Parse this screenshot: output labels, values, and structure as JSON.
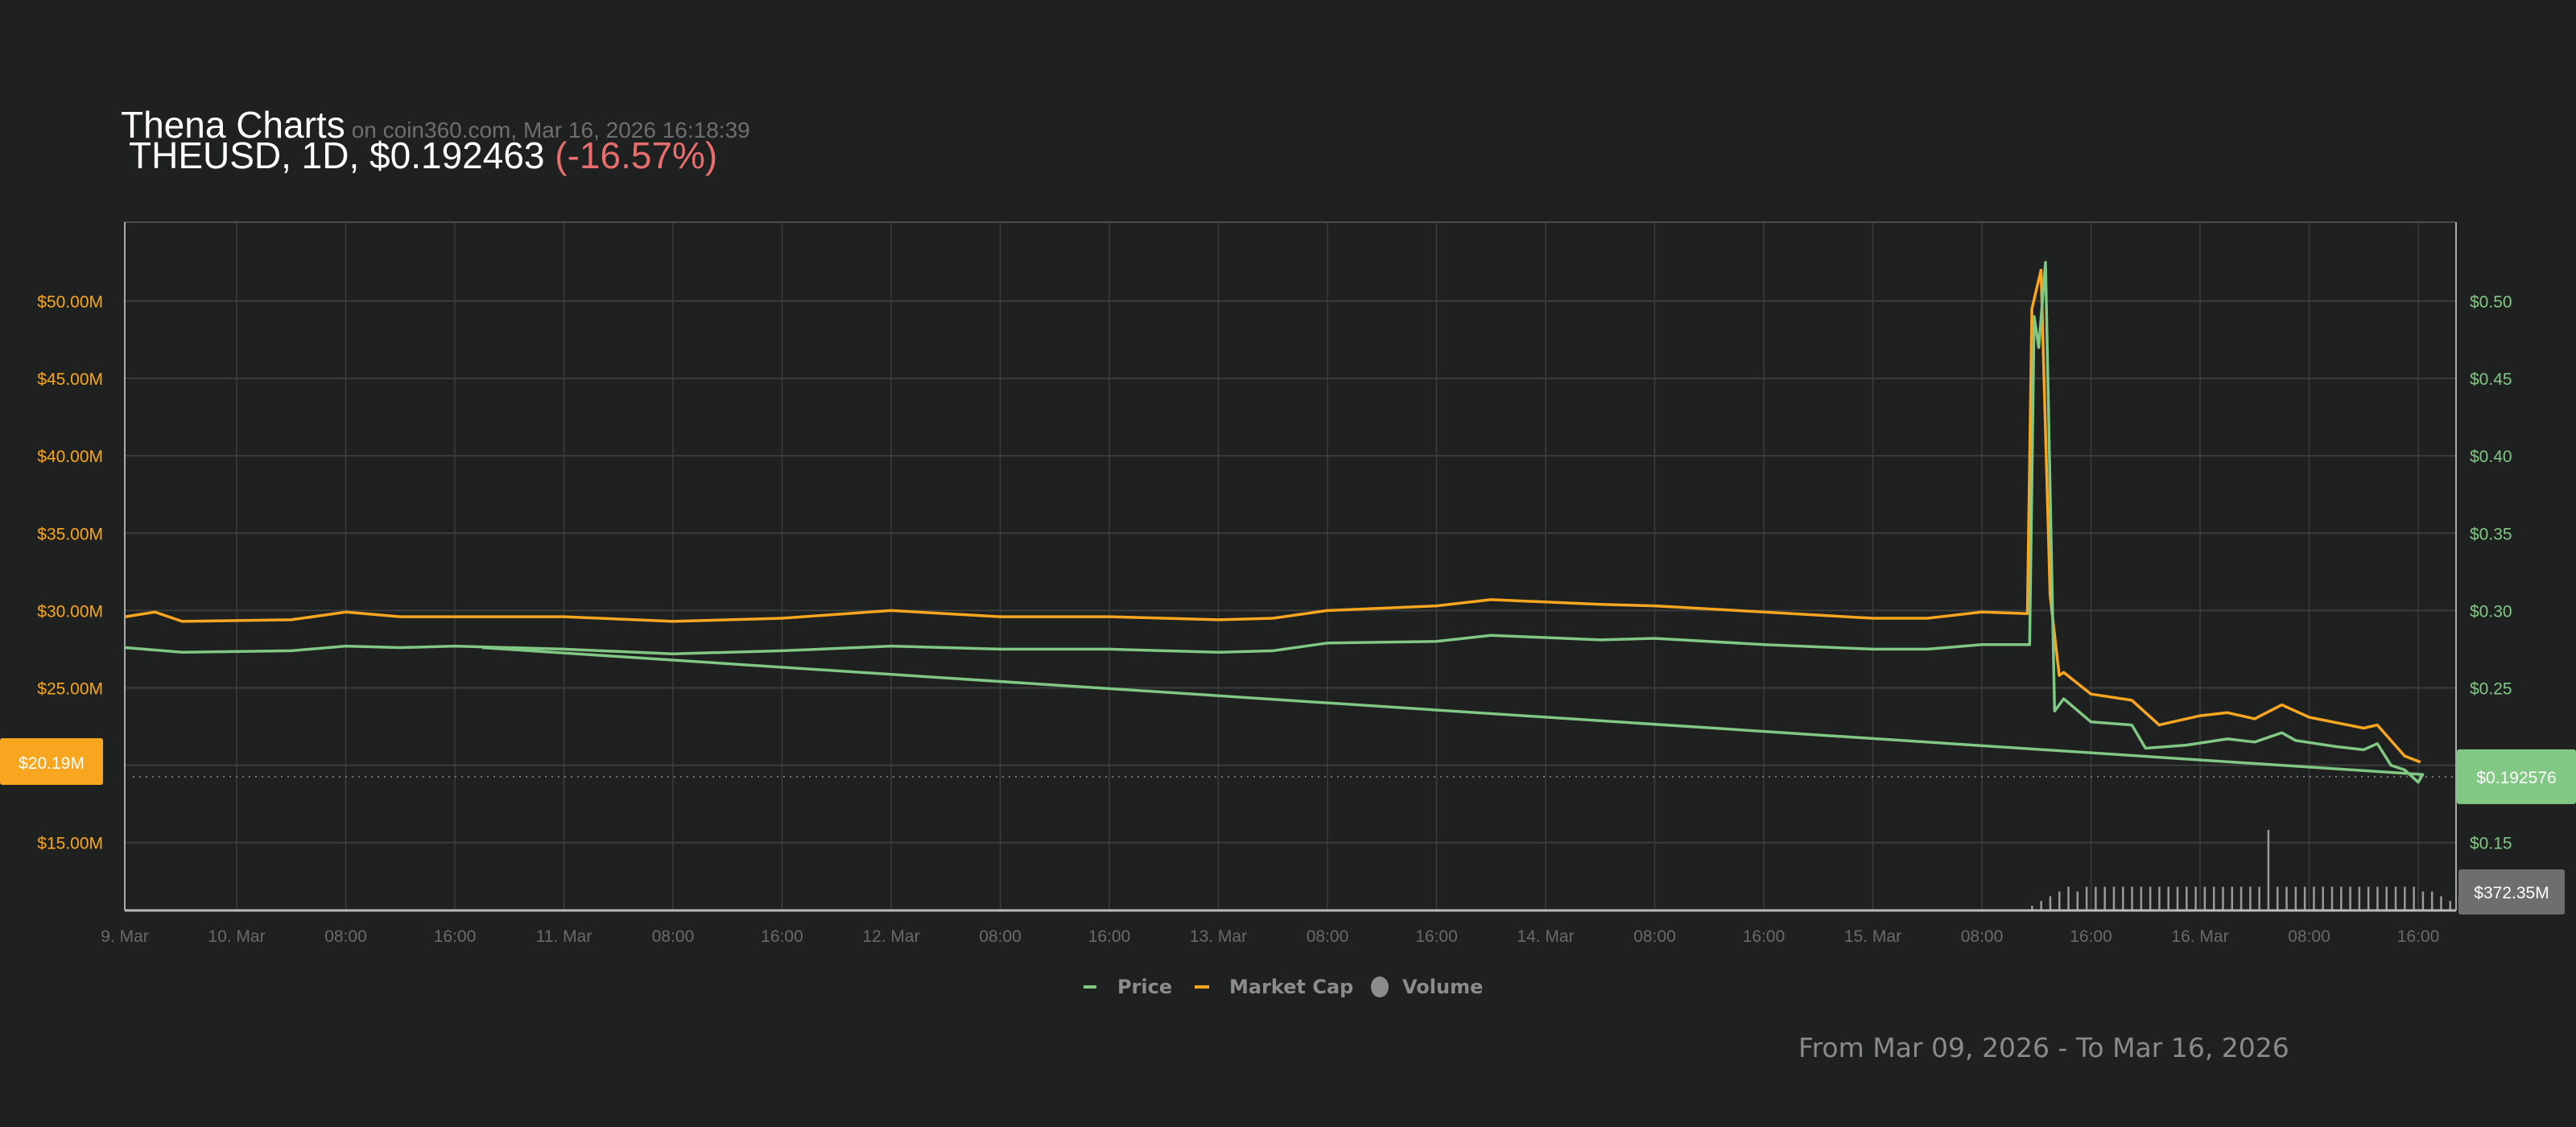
{
  "header": {
    "title": "Thena Charts",
    "source": "on coin360.com, Mar 16, 2026 16:18:39",
    "symbol_line": "THEUSD, 1D, $0.192463",
    "change": "(-16.57%)"
  },
  "footer": {
    "range": "From Mar 09, 2026 - To Mar 16, 2026"
  },
  "colors": {
    "background": "#1f2020",
    "price": "#80c883",
    "market_cap": "#f8a61f",
    "volume": "#8c8c8c",
    "change_negative": "#e86e6e",
    "grid": "#3b3c3c"
  },
  "chart_data": {
    "type": "line",
    "grid": true,
    "legend_position": "bottom-center",
    "x_ticks": [
      {
        "t": "2026-03-09T15:50",
        "label": "9. Mar"
      },
      {
        "t": "2026-03-10T00:00",
        "label": "10. Mar"
      },
      {
        "t": "2026-03-10T08:00",
        "label": "08:00"
      },
      {
        "t": "2026-03-10T16:00",
        "label": "16:00"
      },
      {
        "t": "2026-03-11T00:00",
        "label": "11. Mar"
      },
      {
        "t": "2026-03-11T08:00",
        "label": "08:00"
      },
      {
        "t": "2026-03-11T16:00",
        "label": "16:00"
      },
      {
        "t": "2026-03-12T00:00",
        "label": "12. Mar"
      },
      {
        "t": "2026-03-12T08:00",
        "label": "08:00"
      },
      {
        "t": "2026-03-12T16:00",
        "label": "16:00"
      },
      {
        "t": "2026-03-13T00:00",
        "label": "13. Mar"
      },
      {
        "t": "2026-03-13T08:00",
        "label": "08:00"
      },
      {
        "t": "2026-03-13T16:00",
        "label": "16:00"
      },
      {
        "t": "2026-03-14T00:00",
        "label": "14. Mar"
      },
      {
        "t": "2026-03-14T08:00",
        "label": "08:00"
      },
      {
        "t": "2026-03-14T16:00",
        "label": "16:00"
      },
      {
        "t": "2026-03-15T00:00",
        "label": "15. Mar"
      },
      {
        "t": "2026-03-15T08:00",
        "label": "08:00"
      },
      {
        "t": "2026-03-15T16:00",
        "label": "16:00"
      },
      {
        "t": "2026-03-16T00:00",
        "label": "16. Mar"
      },
      {
        "t": "2026-03-16T08:00",
        "label": "08:00"
      },
      {
        "t": "2026-03-16T16:00",
        "label": "16:00"
      }
    ],
    "x_range": [
      "2026-03-09T15:50",
      "2026-03-16T17:40"
    ],
    "left_axis": {
      "unit": "Market Cap (USD M)",
      "ticks": [
        15,
        20,
        25,
        30,
        35,
        40,
        45,
        50
      ],
      "tick_labels": [
        "$15.00M",
        "",
        "$25.00M",
        "$30.00M",
        "$35.00M",
        "$40.00M",
        "$45.00M",
        "$50.00M"
      ],
      "current_label": "$20.19M",
      "current_value": 20.19
    },
    "right_axis": {
      "ticks": [
        0.15,
        0.2,
        0.25,
        0.3,
        0.35,
        0.4,
        0.45,
        0.5
      ],
      "tick_labels": [
        "$0.15",
        "",
        "$0.25",
        "$0.30",
        "$0.35",
        "$0.40",
        "$0.45",
        "$0.50"
      ],
      "current_label": "$0.192576",
      "current_value": 0.192576
    },
    "volume_label": "$372.35M",
    "series": [
      {
        "name": "Price",
        "axis": "right",
        "points": [
          [
            "2026-03-09T15:50",
            0.276
          ],
          [
            "2026-03-09T20:00",
            0.273
          ],
          [
            "2026-03-10T04:00",
            0.274
          ],
          [
            "2026-03-10T08:00",
            0.277
          ],
          [
            "2026-03-10T12:00",
            0.276
          ],
          [
            "2026-03-10T16:00",
            0.277
          ],
          [
            "2026-03-11T00:00",
            0.275
          ],
          [
            "2026-03-11T08:00",
            0.272
          ],
          [
            "2026-03-11T16:00",
            0.274
          ],
          [
            "2026-03-12T00:00",
            0.277
          ],
          [
            "2026-03-12T08:00",
            0.275
          ],
          [
            "2026-03-12T16:00",
            0.275
          ],
          [
            "2026-03-13T00:00",
            0.273
          ],
          [
            "2026-03-13T04:00",
            0.274
          ],
          [
            "2026-03-13T08:00",
            0.279
          ],
          [
            "2026-03-13T16:00",
            0.28
          ],
          [
            "2026-03-13T20:00",
            0.284
          ],
          [
            "2026-03-14T04:00",
            0.281
          ],
          [
            "2026-03-14T08:00",
            0.282
          ],
          [
            "2026-03-14T16:00",
            0.278
          ],
          [
            "2026-03-15T00:00",
            0.275
          ],
          [
            "2026-03-15T04:00",
            0.275
          ],
          [
            "2026-03-15T08:00",
            0.278
          ],
          [
            "2026-03-15T11:30",
            0.278
          ],
          [
            "2026-03-15T11:50",
            0.49
          ],
          [
            "2026-03-15T12:10",
            0.47
          ],
          [
            "2026-03-15T12:40",
            0.525
          ],
          [
            "2026-03-15T13:20",
            0.235
          ],
          [
            "2026-03-15T14:00",
            0.243
          ],
          [
            "2026-03-15T16:00",
            0.228
          ],
          [
            "2026-03-15T19:00",
            0.226
          ],
          [
            "2026-03-15T20:00",
            0.211
          ],
          [
            "2026-03-15T23:00",
            0.213
          ],
          [
            "2026-03-16T02:00",
            0.217
          ],
          [
            "2026-03-16T04:00",
            0.215
          ],
          [
            "2026-03-16T06:00",
            0.221
          ],
          [
            "2026-03-16T07:00",
            0.216
          ],
          [
            "2026-03-16T10:00",
            0.212
          ],
          [
            "2026-03-16T12:00",
            0.21
          ],
          [
            "2026-03-16T13:00",
            0.214
          ],
          [
            "2026-03-16T14:00",
            0.2
          ],
          [
            "2026-03-16T15:00",
            0.197
          ],
          [
            "2026-03-16T16:00",
            0.189
          ],
          [
            "2026-03-16T16:20",
            0.194
          ],
          [
            "2026-03-10T18:00",
            0.276
          ]
        ]
      },
      {
        "name": "Market Cap",
        "axis": "left",
        "points": [
          [
            "2026-03-09T15:50",
            29.6
          ],
          [
            "2026-03-09T18:00",
            29.9
          ],
          [
            "2026-03-09T20:00",
            29.3
          ],
          [
            "2026-03-10T04:00",
            29.4
          ],
          [
            "2026-03-10T08:00",
            29.9
          ],
          [
            "2026-03-10T12:00",
            29.6
          ],
          [
            "2026-03-10T16:00",
            29.6
          ],
          [
            "2026-03-11T00:00",
            29.6
          ],
          [
            "2026-03-11T08:00",
            29.3
          ],
          [
            "2026-03-11T16:00",
            29.5
          ],
          [
            "2026-03-12T00:00",
            30.0
          ],
          [
            "2026-03-12T08:00",
            29.6
          ],
          [
            "2026-03-12T16:00",
            29.6
          ],
          [
            "2026-03-13T00:00",
            29.4
          ],
          [
            "2026-03-13T04:00",
            29.5
          ],
          [
            "2026-03-13T08:00",
            30.0
          ],
          [
            "2026-03-13T16:00",
            30.3
          ],
          [
            "2026-03-13T20:00",
            30.7
          ],
          [
            "2026-03-14T04:00",
            30.4
          ],
          [
            "2026-03-14T08:00",
            30.3
          ],
          [
            "2026-03-14T16:00",
            29.9
          ],
          [
            "2026-03-15T00:00",
            29.5
          ],
          [
            "2026-03-15T04:00",
            29.5
          ],
          [
            "2026-03-15T08:00",
            29.9
          ],
          [
            "2026-03-15T11:20",
            29.8
          ],
          [
            "2026-03-15T11:40",
            49.5
          ],
          [
            "2026-03-15T12:20",
            52.0
          ],
          [
            "2026-03-15T13:00",
            31.0
          ],
          [
            "2026-03-15T13:40",
            25.8
          ],
          [
            "2026-03-15T14:00",
            26.0
          ],
          [
            "2026-03-15T16:00",
            24.6
          ],
          [
            "2026-03-15T19:00",
            24.2
          ],
          [
            "2026-03-15T21:00",
            22.6
          ],
          [
            "2026-03-16T00:00",
            23.2
          ],
          [
            "2026-03-16T02:00",
            23.4
          ],
          [
            "2026-03-16T04:00",
            23.0
          ],
          [
            "2026-03-16T06:00",
            23.9
          ],
          [
            "2026-03-16T08:00",
            23.1
          ],
          [
            "2026-03-16T12:00",
            22.4
          ],
          [
            "2026-03-16T13:00",
            22.6
          ],
          [
            "2026-03-16T15:00",
            20.6
          ],
          [
            "2026-03-16T16:10",
            20.2
          ]
        ]
      },
      {
        "name": "Volume",
        "type": "column",
        "start": "2026-03-15T11:40",
        "step_minutes": 40,
        "values": [
          1,
          2,
          3,
          4,
          5,
          4,
          5,
          5,
          5,
          5,
          5,
          5,
          5,
          5,
          5,
          5,
          5,
          5,
          5,
          5,
          5,
          5,
          5,
          5,
          5,
          5,
          17,
          5,
          5,
          5,
          5,
          5,
          5,
          5,
          5,
          5,
          5,
          5,
          5,
          5,
          5,
          5,
          5,
          4,
          4,
          3,
          2,
          3,
          2,
          3
        ]
      }
    ]
  }
}
